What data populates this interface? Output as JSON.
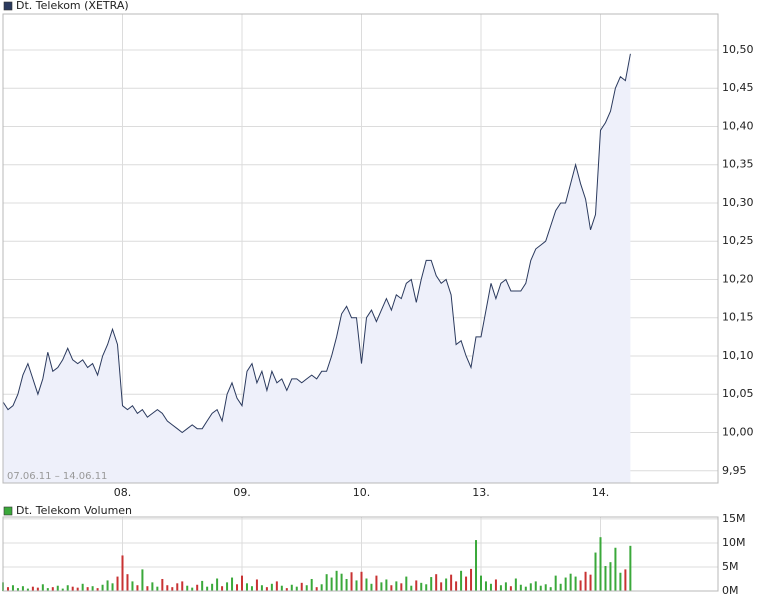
{
  "chart_data": [
    {
      "type": "line",
      "title": "Dt. Telekom (XETRA)",
      "annotation": "07.06.11 – 14.06.11",
      "color": "#2b3a5e",
      "fill": "#eef0fa",
      "legend_color": "#2b3a5e",
      "grid": true,
      "xlim": [
        0,
        143.6
      ],
      "xticks": [
        {
          "value": 24,
          "label": "08."
        },
        {
          "value": 48,
          "label": "09."
        },
        {
          "value": 72,
          "label": "10."
        },
        {
          "value": 96,
          "label": "13."
        },
        {
          "value": 120,
          "label": "14."
        }
      ],
      "ylim": [
        9.934,
        10.547
      ],
      "yticks": [
        {
          "value": 9.95,
          "label": "9,95"
        },
        {
          "value": 10.0,
          "label": "10,00"
        },
        {
          "value": 10.05,
          "label": "10,05"
        },
        {
          "value": 10.1,
          "label": "10,10"
        },
        {
          "value": 10.15,
          "label": "10,15"
        },
        {
          "value": 10.2,
          "label": "10,20"
        },
        {
          "value": 10.25,
          "label": "10,25"
        },
        {
          "value": 10.3,
          "label": "10,30"
        },
        {
          "value": 10.35,
          "label": "10,35"
        },
        {
          "value": 10.4,
          "label": "10,40"
        },
        {
          "value": 10.45,
          "label": "10,45"
        },
        {
          "value": 10.5,
          "label": "10,50"
        }
      ],
      "values": [
        10.04,
        10.03,
        10.035,
        10.05,
        10.075,
        10.09,
        10.07,
        10.05,
        10.07,
        10.105,
        10.08,
        10.085,
        10.095,
        10.11,
        10.095,
        10.09,
        10.095,
        10.085,
        10.09,
        10.075,
        10.1,
        10.115,
        10.135,
        10.115,
        10.035,
        10.03,
        10.035,
        10.025,
        10.03,
        10.02,
        10.025,
        10.03,
        10.025,
        10.015,
        10.01,
        10.005,
        10.0,
        10.005,
        10.01,
        10.005,
        10.005,
        10.015,
        10.025,
        10.03,
        10.015,
        10.05,
        10.065,
        10.045,
        10.035,
        10.08,
        10.09,
        10.065,
        10.08,
        10.055,
        10.08,
        10.065,
        10.07,
        10.055,
        10.07,
        10.07,
        10.065,
        10.07,
        10.075,
        10.07,
        10.08,
        10.08,
        10.1,
        10.125,
        10.155,
        10.165,
        10.15,
        10.15,
        10.09,
        10.15,
        10.16,
        10.145,
        10.16,
        10.175,
        10.16,
        10.18,
        10.175,
        10.195,
        10.2,
        10.17,
        10.2,
        10.225,
        10.225,
        10.205,
        10.195,
        10.2,
        10.18,
        10.115,
        10.12,
        10.1,
        10.085,
        10.125,
        10.125,
        10.16,
        10.195,
        10.175,
        10.195,
        10.2,
        10.185,
        10.185,
        10.185,
        10.195,
        10.225,
        10.24,
        10.245,
        10.25,
        10.27,
        10.29,
        10.3,
        10.3,
        10.325,
        10.35,
        10.325,
        10.305,
        10.265,
        10.285,
        10.395,
        10.405,
        10.42,
        10.45,
        10.465,
        10.46,
        10.495
      ]
    },
    {
      "type": "bar",
      "title": "Dt. Telekom Volumen",
      "legend_color": "#3aa83a",
      "up_color": "#3aa83a",
      "down_color": "#c83232",
      "grid": true,
      "xlim": [
        0,
        143.6
      ],
      "xticks": [
        24,
        48,
        72,
        96,
        120
      ],
      "ylim": [
        0,
        15.4
      ],
      "yticks": [
        {
          "value": 0,
          "label": "0M"
        },
        {
          "value": 5,
          "label": "5M"
        },
        {
          "value": 10,
          "label": "10M"
        },
        {
          "value": 15,
          "label": "15M"
        }
      ],
      "values": [
        1.8,
        0.8,
        1.2,
        0.6,
        1.0,
        0.5,
        0.9,
        0.7,
        1.4,
        0.6,
        0.8,
        1.1,
        0.5,
        1.2,
        0.9,
        0.7,
        1.5,
        0.8,
        1.0,
        0.6,
        1.3,
        2.2,
        1.6,
        3.0,
        7.4,
        3.5,
        2.0,
        1.2,
        4.5,
        1.0,
        1.8,
        0.9,
        2.5,
        1.2,
        0.8,
        1.6,
        2.0,
        1.1,
        0.7,
        1.3,
        2.1,
        0.9,
        1.5,
        2.6,
        1.0,
        1.8,
        2.8,
        1.4,
        3.2,
        1.6,
        1.0,
        2.4,
        1.2,
        0.8,
        1.5,
        2.0,
        1.1,
        0.6,
        1.3,
        0.9,
        1.7,
        1.2,
        2.5,
        0.8,
        1.4,
        3.5,
        2.8,
        4.2,
        3.6,
        2.5,
        3.9,
        2.2,
        4.0,
        2.6,
        1.5,
        3.2,
        1.8,
        2.4,
        1.2,
        2.0,
        1.6,
        3.0,
        1.1,
        2.2,
        1.7,
        1.4,
        2.9,
        3.5,
        1.8,
        2.6,
        3.4,
        2.0,
        4.2,
        3.0,
        4.6,
        10.6,
        3.2,
        2.0,
        1.5,
        2.4,
        1.2,
        1.8,
        1.0,
        2.6,
        1.3,
        0.9,
        1.6,
        2.0,
        1.1,
        1.4,
        0.8,
        3.2,
        1.5,
        2.8,
        3.6,
        3.0,
        2.2,
        4.0,
        3.4,
        8.0,
        11.2,
        5.2,
        6.0,
        9.0,
        3.8,
        4.5,
        9.4
      ]
    }
  ]
}
